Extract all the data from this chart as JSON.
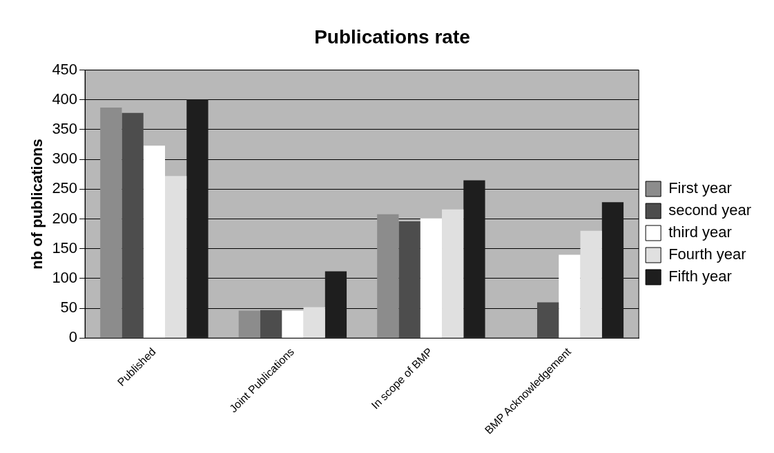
{
  "chart_data": {
    "type": "bar",
    "title": "Publications rate",
    "ylabel": "nb of publications",
    "categories": [
      "Published",
      "Joint Publications",
      "In scope of BMP",
      "BMP Acknowledgement"
    ],
    "series": [
      {
        "name": "First year",
        "color": "#8c8c8c",
        "values": [
          387,
          46,
          208,
          null
        ]
      },
      {
        "name": "second year",
        "color": "#4d4d4d",
        "values": [
          378,
          47,
          196,
          60
        ]
      },
      {
        "name": "third year",
        "color": "#ffffff",
        "values": [
          323,
          46,
          201,
          140
        ]
      },
      {
        "name": "Fourth year",
        "color": "#e0e0e0",
        "values": [
          272,
          52,
          216,
          180
        ]
      },
      {
        "name": "Fifth year",
        "color": "#1e1e1e",
        "values": [
          401,
          112,
          265,
          228
        ]
      }
    ],
    "ylim": [
      0,
      450
    ],
    "yticks": [
      0,
      50,
      100,
      150,
      200,
      250,
      300,
      350,
      400,
      450
    ],
    "grid": "y",
    "legend": "right"
  }
}
